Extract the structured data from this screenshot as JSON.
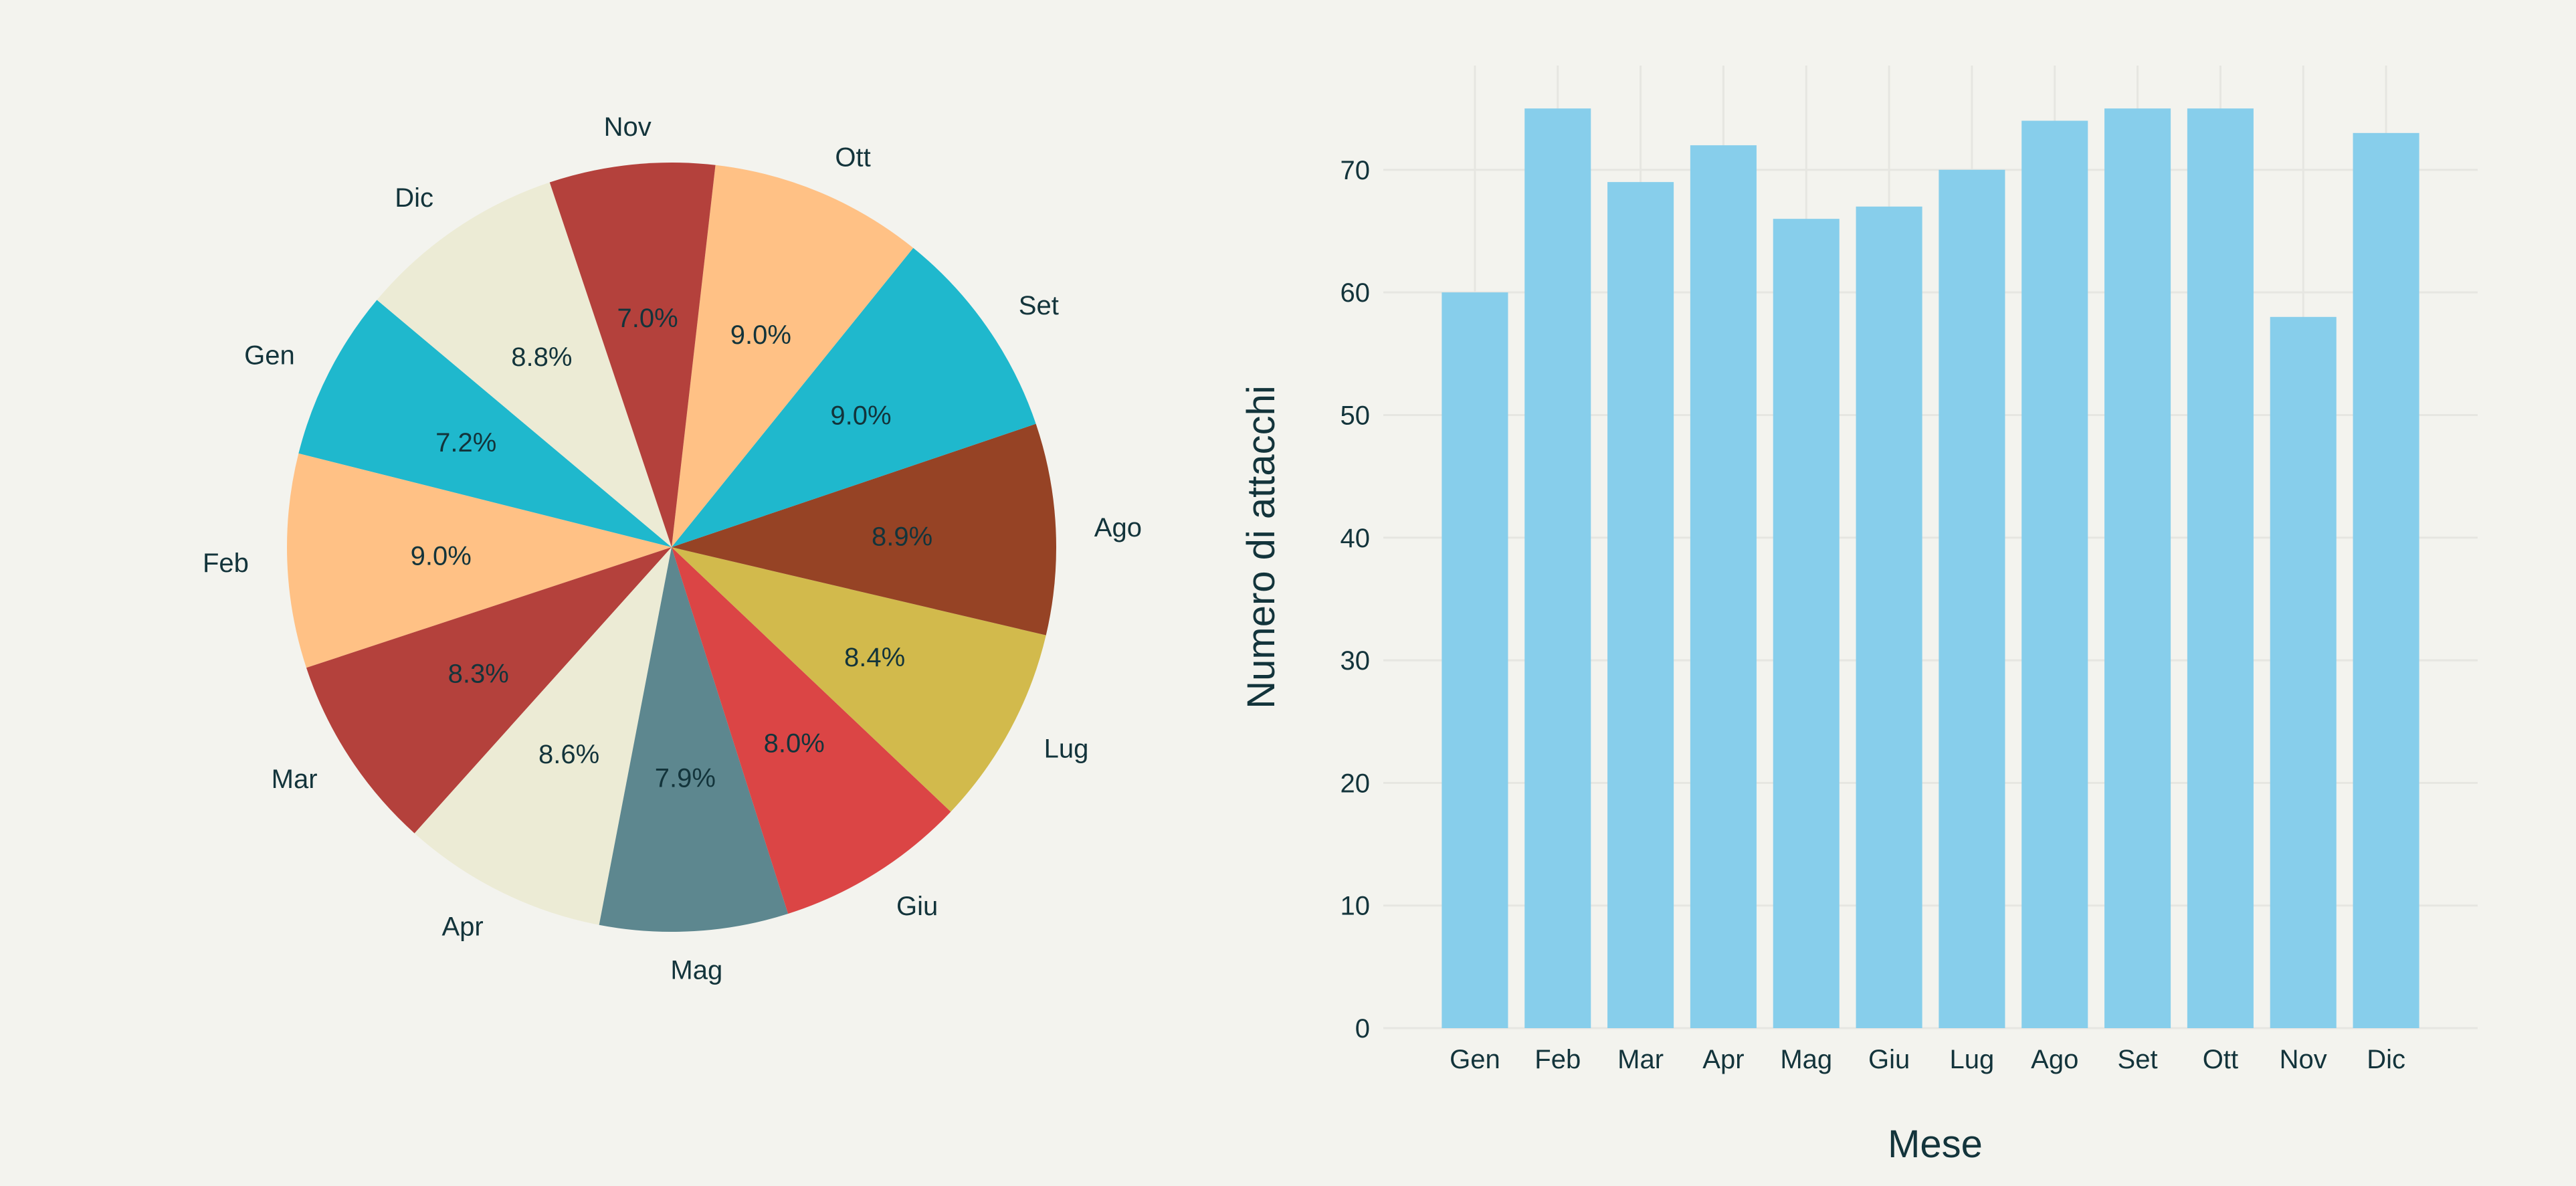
{
  "chart_data": [
    {
      "type": "pie",
      "categories": [
        "Gen",
        "Feb",
        "Mar",
        "Apr",
        "Mag",
        "Giu",
        "Lug",
        "Ago",
        "Set",
        "Ott",
        "Nov",
        "Dic"
      ],
      "values": [
        60,
        75,
        69,
        72,
        66,
        67,
        70,
        74,
        75,
        75,
        58,
        73
      ],
      "percent_labels": [
        "7.2%",
        "9.0%",
        "8.3%",
        "8.6%",
        "7.9%",
        "8.0%",
        "8.4%",
        "8.9%",
        "9.0%",
        "9.0%",
        "7.0%",
        "8.8%"
      ],
      "colors": [
        "#1FB8CD",
        "#FFC185",
        "#B4413C",
        "#ECEBD5",
        "#5D878F",
        "#DB4545",
        "#D2BA4C",
        "#964325",
        "#1FB8CD",
        "#FFC185",
        "#B4413C",
        "#ECEBD5"
      ],
      "start_angle_deg": 140,
      "direction": "counterclockwise"
    },
    {
      "type": "bar",
      "categories": [
        "Gen",
        "Feb",
        "Mar",
        "Apr",
        "Mag",
        "Giu",
        "Lug",
        "Ago",
        "Set",
        "Ott",
        "Nov",
        "Dic"
      ],
      "values": [
        60,
        75,
        69,
        72,
        66,
        67,
        70,
        74,
        75,
        75,
        58,
        73
      ],
      "xlabel": "Mese",
      "ylabel": "Numero di attacchi",
      "yticks": [
        0,
        10,
        20,
        30,
        40,
        50,
        60,
        70
      ],
      "ylim": [
        0,
        78.5
      ],
      "bar_color": "#87CEEB",
      "grid": true
    }
  ]
}
